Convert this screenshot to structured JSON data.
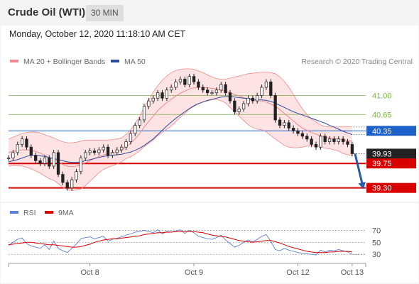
{
  "header": {
    "title": "Crude Oil (WTI)",
    "timeframe": "30 MIN",
    "datetime": "Monday, October 12, 2020 11:18:10 AM CET"
  },
  "colors": {
    "price": "#222222",
    "bollinger": "#f08a8a",
    "bollinger_fill": "#fde3e3",
    "ma50": "#2b4c9b",
    "resistance": "#7cb342",
    "pivot": "#1e62c9",
    "support": "#d90000",
    "current": "#222222",
    "rsi": "#5b7fd6",
    "rsi_ma": "#d90000",
    "arrow": "#2b5ba8"
  },
  "chart_data": [
    {
      "type": "line",
      "title": "",
      "legend": [
        {
          "name": "MA 20 + Bollinger Bands",
          "color": "#f08a8a"
        },
        {
          "name": "MA 50",
          "color": "#2b4c9b"
        }
      ],
      "source": "Research © 2020 Trading Central",
      "ylim": [
        39.1,
        41.45
      ],
      "x_ticks": [
        {
          "label": "Oct 8",
          "index": 18
        },
        {
          "label": "Oct 9",
          "index": 41
        },
        {
          "label": "Oct 12",
          "index": 64
        },
        {
          "label": "Oct 13",
          "index": 76
        }
      ],
      "x_count": 80,
      "levels": [
        {
          "value": 41.0,
          "label": "41.00",
          "kind": "resistance"
        },
        {
          "value": 40.65,
          "label": "40.65",
          "kind": "resistance"
        },
        {
          "value": 40.35,
          "label": "40.35",
          "kind": "pivot"
        },
        {
          "value": 39.93,
          "label": "39.93",
          "kind": "current"
        },
        {
          "value": 39.75,
          "label": "39.75",
          "kind": "support"
        },
        {
          "value": 39.3,
          "label": "39.30",
          "kind": "support"
        }
      ],
      "series": [
        {
          "key": "price",
          "values": [
            39.85,
            39.95,
            40.1,
            40.2,
            40.05,
            39.9,
            39.8,
            39.75,
            39.85,
            39.7,
            39.95,
            39.55,
            39.4,
            39.3,
            39.45,
            39.6,
            39.85,
            39.95,
            39.98,
            39.95,
            40.0,
            40.05,
            39.9,
            39.95,
            40.0,
            40.05,
            40.15,
            40.3,
            40.45,
            40.55,
            40.8,
            40.9,
            40.95,
            41.05,
            40.95,
            41.1,
            41.15,
            41.25,
            41.3,
            41.2,
            41.35,
            41.25,
            41.15,
            41.1,
            41.05,
            41.05,
            41.1,
            41.2,
            41.05,
            40.9,
            40.7,
            40.75,
            40.85,
            40.95,
            40.9,
            41.0,
            41.15,
            41.25,
            41.0,
            40.55,
            40.45,
            40.5,
            40.4,
            40.35,
            40.3,
            40.25,
            40.2,
            40.1,
            40.05,
            40.25,
            40.15,
            40.2,
            40.15,
            40.2,
            40.15,
            40.1,
            39.93
          ],
          "count": 77
        },
        {
          "key": "ma20",
          "values": [
            39.95,
            39.97,
            39.99,
            40.0,
            40.0,
            39.99,
            39.97,
            39.94,
            39.9,
            39.86,
            39.83,
            39.78,
            39.73,
            39.7,
            39.69,
            39.7,
            39.72,
            39.76,
            39.8,
            39.84,
            39.88,
            39.91,
            39.93,
            39.95,
            39.97,
            40.0,
            40.06,
            40.12,
            40.2,
            40.3,
            40.42,
            40.52,
            40.62,
            40.72,
            40.8,
            40.87,
            40.93,
            40.99,
            41.04,
            41.08,
            41.12,
            41.14,
            41.15,
            41.15,
            41.14,
            41.13,
            41.12,
            41.1,
            41.08,
            41.05,
            41.02,
            40.99,
            40.96,
            40.93,
            40.91,
            40.9,
            40.9,
            40.88,
            40.84,
            40.8,
            40.74,
            40.67,
            40.6,
            40.53,
            40.46,
            40.4,
            40.36,
            40.32,
            40.29,
            40.26,
            40.23,
            40.22,
            40.21,
            40.2,
            40.18,
            40.17,
            40.16
          ]
        },
        {
          "key": "bb_upper",
          "values": [
            40.2,
            40.23,
            40.27,
            40.3,
            40.32,
            40.33,
            40.33,
            40.31,
            40.28,
            40.25,
            40.22,
            40.18,
            40.15,
            40.13,
            40.13,
            40.14,
            40.16,
            40.18,
            40.18,
            40.18,
            40.18,
            40.18,
            40.18,
            40.19,
            40.2,
            40.22,
            40.28,
            40.37,
            40.48,
            40.62,
            40.78,
            40.92,
            41.06,
            41.18,
            41.28,
            41.36,
            41.42,
            41.46,
            41.48,
            41.49,
            41.49,
            41.48,
            41.45,
            41.42,
            41.38,
            41.34,
            41.31,
            41.3,
            41.3,
            41.32,
            41.34,
            41.36,
            41.38,
            41.4,
            41.41,
            41.42,
            41.43,
            41.43,
            41.42,
            41.4,
            41.34,
            41.26,
            41.15,
            41.02,
            40.88,
            40.75,
            40.65,
            40.57,
            40.51,
            40.46,
            40.43,
            40.42,
            40.42,
            40.42,
            40.43,
            40.43,
            40.42
          ]
        },
        {
          "key": "bb_lower",
          "values": [
            39.7,
            39.71,
            39.71,
            39.7,
            39.68,
            39.65,
            39.61,
            39.57,
            39.52,
            39.47,
            39.44,
            39.38,
            39.31,
            39.27,
            39.25,
            39.26,
            39.28,
            39.34,
            39.42,
            39.5,
            39.58,
            39.64,
            39.68,
            39.71,
            39.74,
            39.78,
            39.84,
            39.87,
            39.92,
            39.98,
            40.06,
            40.12,
            40.18,
            40.26,
            40.32,
            40.38,
            40.44,
            40.52,
            40.6,
            40.67,
            40.75,
            40.8,
            40.85,
            40.88,
            40.9,
            40.92,
            40.93,
            40.9,
            40.86,
            40.78,
            40.7,
            40.62,
            40.54,
            40.46,
            40.41,
            40.38,
            40.37,
            40.33,
            40.26,
            40.2,
            40.14,
            40.08,
            40.05,
            40.04,
            40.04,
            40.05,
            40.07,
            40.07,
            40.07,
            40.06,
            40.03,
            40.02,
            40.0,
            39.98,
            39.93,
            39.91,
            39.9
          ]
        },
        {
          "key": "ma50",
          "values": [
            39.78,
            39.8,
            39.82,
            39.85,
            39.88,
            39.9,
            39.9,
            39.89,
            39.88,
            39.86,
            39.84,
            39.82,
            39.8,
            39.78,
            39.77,
            39.77,
            39.78,
            39.8,
            39.82,
            39.84,
            39.86,
            39.88,
            39.89,
            39.9,
            39.91,
            39.92,
            39.94,
            39.96,
            39.99,
            40.03,
            40.08,
            40.14,
            40.2,
            40.28,
            40.36,
            40.44,
            40.51,
            40.58,
            40.64,
            40.7,
            40.76,
            40.81,
            40.85,
            40.88,
            40.91,
            40.93,
            40.95,
            40.97,
            40.98,
            40.98,
            40.97,
            40.96,
            40.95,
            40.94,
            40.93,
            40.92,
            40.92,
            40.91,
            40.89,
            40.86,
            40.82,
            40.78,
            40.74,
            40.7,
            40.67,
            40.64,
            40.61,
            40.58,
            40.55,
            40.52,
            40.49,
            40.45,
            40.42,
            40.38,
            40.34,
            40.31,
            40.28
          ]
        }
      ],
      "projection": {
        "from_value": 39.93,
        "to_value": 39.3
      }
    },
    {
      "type": "line",
      "title": "",
      "legend": [
        {
          "name": "RSI",
          "color": "#5b7fd6"
        },
        {
          "name": "9MA",
          "color": "#d90000"
        }
      ],
      "ylim": [
        22,
        80
      ],
      "y_ticks": [
        70,
        50,
        30
      ],
      "series": [
        {
          "key": "rsi",
          "values": [
            45,
            50,
            55,
            57,
            48,
            44,
            42,
            40,
            46,
            38,
            52,
            40,
            36,
            33,
            40,
            47,
            56,
            58,
            59,
            56,
            58,
            60,
            52,
            55,
            57,
            59,
            62,
            64,
            67,
            68,
            70,
            68,
            66,
            71,
            64,
            68,
            67,
            69,
            71,
            65,
            70,
            66,
            60,
            58,
            56,
            55,
            58,
            62,
            54,
            48,
            42,
            45,
            50,
            54,
            51,
            55,
            60,
            63,
            52,
            38,
            36,
            40,
            37,
            35,
            33,
            32,
            31,
            30,
            29,
            37,
            34,
            37,
            36,
            38,
            36,
            34,
            30
          ]
        },
        {
          "key": "rsi_ma",
          "values": [
            46,
            47,
            48,
            49,
            50,
            50,
            49,
            48,
            47,
            46,
            46,
            45,
            44,
            43,
            42,
            42,
            43,
            45,
            47,
            50,
            52,
            54,
            55,
            56,
            56,
            57,
            58,
            59,
            60,
            61,
            63,
            64,
            65,
            66,
            66,
            67,
            67,
            68,
            68,
            68,
            68,
            68,
            67,
            66,
            64,
            62,
            61,
            60,
            59,
            57,
            55,
            53,
            52,
            51,
            50,
            51,
            52,
            53,
            53,
            51,
            49,
            46,
            43,
            41,
            39,
            37,
            35,
            34,
            33,
            33,
            33,
            34,
            34,
            35,
            35,
            35,
            34
          ]
        }
      ]
    }
  ]
}
